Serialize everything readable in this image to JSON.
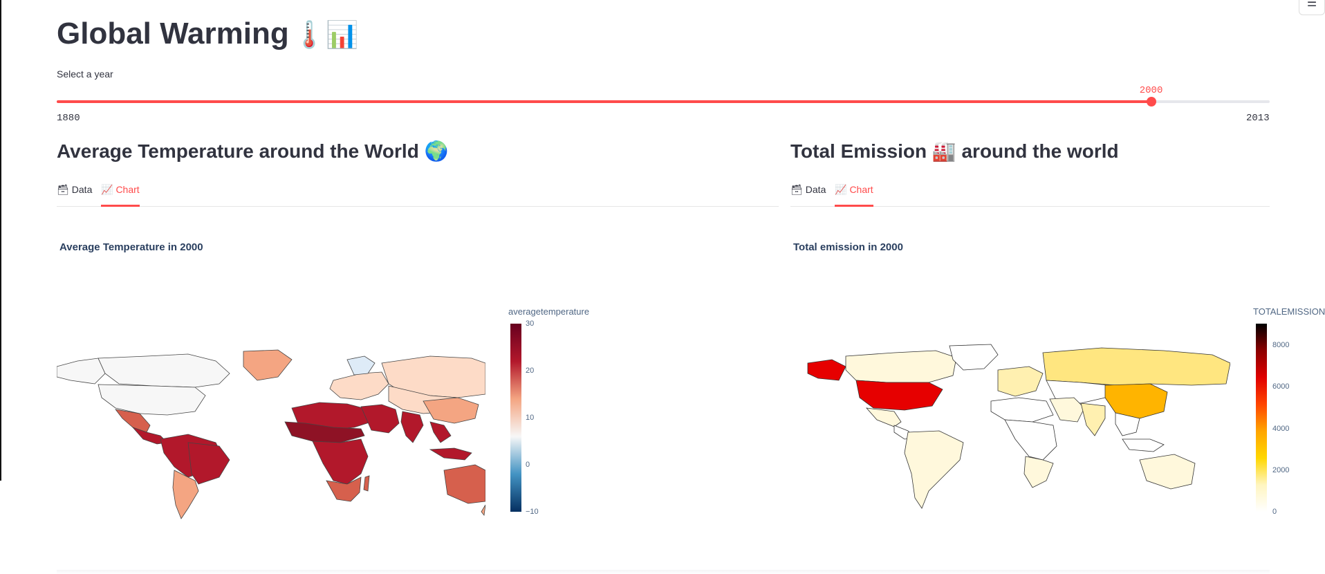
{
  "page": {
    "title": "Global Warming",
    "title_emojis": "🌡️📊",
    "menu_icon": "☰"
  },
  "year_slider": {
    "label": "Select a year",
    "min": 1880,
    "max": 2013,
    "value": 2000,
    "min_label": "1880",
    "max_label": "2013",
    "value_label": "2000",
    "accent_color": "#ff4b4b"
  },
  "left_section": {
    "heading": "Average Temperature around the World 🌍",
    "tabs": [
      {
        "icon": "🗃",
        "label": "Data",
        "active": false
      },
      {
        "icon": "📈",
        "label": "Chart",
        "active": true
      }
    ],
    "chart_title": "Average Temperature in 2000"
  },
  "right_section": {
    "heading": "Total Emission 🏭 around the world",
    "tabs": [
      {
        "icon": "🗃",
        "label": "Data",
        "active": false
      },
      {
        "icon": "📈",
        "label": "Chart",
        "active": true
      }
    ],
    "chart_title": "Total emission in 2000"
  },
  "chart_data": [
    {
      "type": "heatmap",
      "subtype": "choropleth",
      "title": "Average Temperature in 2000",
      "colorbar_title": "averagetemperature",
      "colorbar_ticks": [
        "30",
        "20",
        "10",
        "0",
        "−10"
      ],
      "range": [
        -10,
        30
      ],
      "colorscale": [
        "#053061",
        "#4393c3",
        "#f7f7f7",
        "#f4a582",
        "#b2182b",
        "#67001f"
      ],
      "colors": {
        "tropical": "#b2182b",
        "warm": "#d6604d",
        "mild": "#f4a582",
        "cool": "#fddbc7",
        "cold": "#f7f7f7"
      }
    },
    {
      "type": "heatmap",
      "subtype": "choropleth",
      "title": "Total emission in 2000",
      "colorbar_title": "TOTALEMISSIONS",
      "colorbar_ticks": [
        "8000",
        "6000",
        "4000",
        "2000",
        "0"
      ],
      "range": [
        0,
        9000
      ],
      "colorscale": [
        "#ffffff",
        "#fff5c0",
        "#ffd700",
        "#ffa500",
        "#ff4500",
        "#e00000",
        "#8b0000",
        "#000000"
      ],
      "colors": {
        "usa": "#e60000",
        "alaska": "#e60000",
        "china": "#ffb400",
        "russia": "#ffe680",
        "low": "#fff8dc",
        "india": "#fff0b0",
        "none": "#ffffff"
      }
    }
  ]
}
